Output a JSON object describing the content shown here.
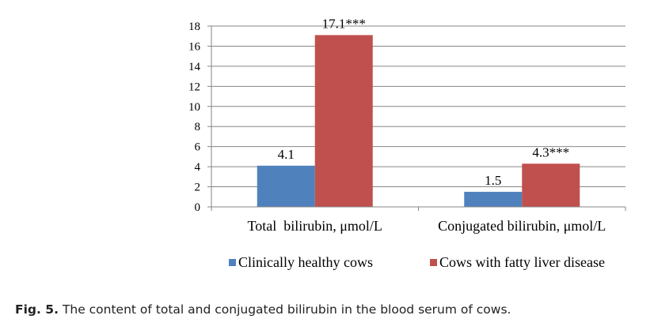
{
  "chart_data": {
    "type": "bar",
    "categories": [
      "Total  bilirubin, μmol/L",
      "Conjugated bilirubin, μmol/L"
    ],
    "series": [
      {
        "name": "Clinically healthy cows",
        "values": [
          4.1,
          1.5
        ],
        "labels": [
          "4.1",
          "1.5"
        ],
        "color": "#4F81BD"
      },
      {
        "name": "Cows with fatty liver disease",
        "values": [
          17.1,
          4.3
        ],
        "labels": [
          "17.1***",
          "4.3***"
        ],
        "color": "#C0504D"
      }
    ],
    "ylim": [
      0,
      18
    ],
    "yticks": [
      0,
      2,
      4,
      6,
      8,
      10,
      12,
      14,
      16,
      18
    ],
    "grid": true,
    "legend_position": "bottom"
  },
  "caption": {
    "label": "Fig. 5.",
    "text": " The content of total and conjugated bilirubin in the blood serum of cows."
  }
}
